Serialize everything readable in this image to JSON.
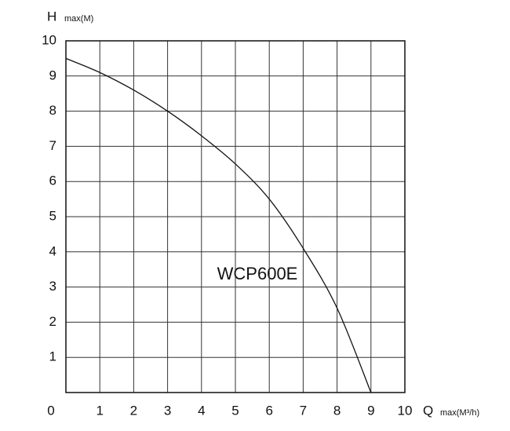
{
  "chart_data": {
    "type": "line",
    "y_label": "H",
    "y_label_sub": "max(M)",
    "x_label": "Q",
    "x_label_sub": "max(M³/h)",
    "annotation": "WCP600E",
    "x": [
      0,
      1,
      2,
      3,
      4,
      5,
      6,
      7,
      8,
      9
    ],
    "series": [
      {
        "name": "WCP600E",
        "color": "#111111",
        "values": [
          9.5,
          9.1,
          8.6,
          8.0,
          7.3,
          6.5,
          5.5,
          4.1,
          2.4,
          0
        ]
      }
    ],
    "xlim": [
      0,
      10
    ],
    "ylim": [
      0,
      10
    ],
    "xticks": [
      0,
      1,
      2,
      3,
      4,
      5,
      6,
      7,
      8,
      9,
      10
    ],
    "yticks": [
      0,
      1,
      2,
      3,
      4,
      5,
      6,
      7,
      8,
      9,
      10
    ],
    "grid": true
  }
}
